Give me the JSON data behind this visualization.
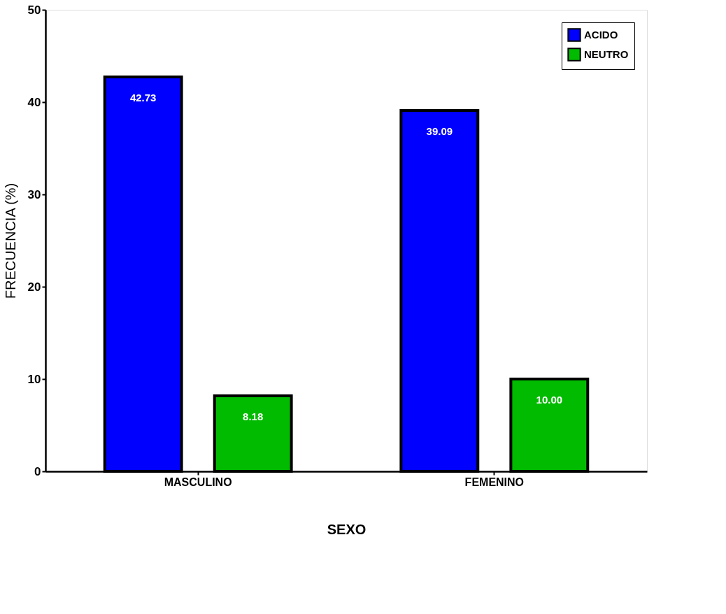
{
  "chart_data": {
    "type": "bar",
    "xlabel": "SEXO",
    "ylabel": "FRECUENCIA (%)",
    "categories": [
      "MASCULINO",
      "FEMENINO"
    ],
    "series": [
      {
        "name": "ACIDO",
        "color": "#0000ff",
        "values": [
          42.73,
          39.09
        ]
      },
      {
        "name": "NEUTRO",
        "color": "#00bb00",
        "values": [
          8.18,
          10.0
        ]
      }
    ],
    "value_labels": [
      [
        "42.73",
        "39.09"
      ],
      [
        "8.18",
        "10.00"
      ]
    ],
    "ylim": [
      0,
      50
    ],
    "yticks": [
      0,
      10,
      20,
      30,
      40,
      50
    ],
    "grid": false,
    "legend": "top right"
  }
}
